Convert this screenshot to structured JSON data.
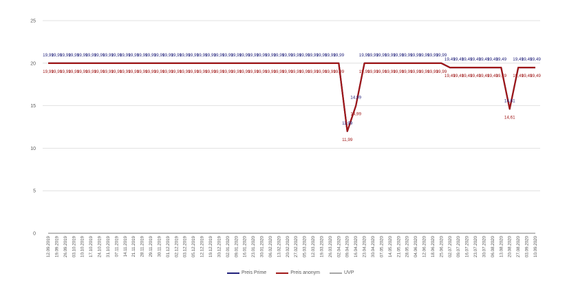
{
  "chart_data": {
    "type": "line",
    "title": "",
    "xlabel": "",
    "ylabel": "",
    "ylim": [
      0,
      25
    ],
    "yticks": [
      0,
      5,
      10,
      15,
      20,
      25
    ],
    "grid": true,
    "legend_position": "bottom",
    "categories": [
      "12.09.2019",
      "19.09.2019",
      "26.09.2019",
      "03.10.2019",
      "10.10.2019",
      "17.10.2019",
      "24.10.2019",
      "31.10.2019",
      "07.11.2019",
      "14.11.2019",
      "21.11.2019",
      "28.11.2019",
      "29.11.2019",
      "30.11.2019",
      "01.12.2019",
      "02.12.2019",
      "03.12.2019",
      "05.12.2019",
      "12.12.2019",
      "19.12.2019",
      "30.12.2019",
      "02.01.2020",
      "09.01.2020",
      "16.01.2020",
      "23.01.2020",
      "30.01.2020",
      "06.02.2020",
      "13.02.2020",
      "20.02.2020",
      "27.02.2020",
      "05.03.2020",
      "12.03.2020",
      "19.03.2020",
      "26.03.2020",
      "02.04.2020",
      "09.04.2020",
      "16.04.2020",
      "23.04.2020",
      "30.04.2020",
      "07.05.2020",
      "14.05.2020",
      "21.05.2020",
      "28.05.2020",
      "04.06.2020",
      "12.06.2020",
      "18.06.2020",
      "25.06.2020",
      "02.07.2020",
      "09.07.2020",
      "16.07.2020",
      "23.07.2020",
      "30.07.2020",
      "06.08.2020",
      "13.08.2020",
      "20.08.2020",
      "27.08.2020",
      "03.09.2020",
      "10.09.2020"
    ],
    "series": [
      {
        "name": "Preis Prime",
        "color": "#1f1f7a",
        "values": [
          19.99,
          19.99,
          19.99,
          19.99,
          19.99,
          19.99,
          19.99,
          19.99,
          19.99,
          19.99,
          19.99,
          19.99,
          19.99,
          19.99,
          19.99,
          19.99,
          19.99,
          19.99,
          19.99,
          19.99,
          19.99,
          19.99,
          19.99,
          19.99,
          19.99,
          19.99,
          19.99,
          19.99,
          19.99,
          19.99,
          19.99,
          19.99,
          19.99,
          19.99,
          19.99,
          11.99,
          14.99,
          19.99,
          19.99,
          19.99,
          19.99,
          19.99,
          19.99,
          19.99,
          19.99,
          19.99,
          19.99,
          19.49,
          19.49,
          19.49,
          19.49,
          19.49,
          19.49,
          19.49,
          14.61,
          19.49,
          19.49,
          19.49
        ]
      },
      {
        "name": "Preis anonym",
        "color": "#a01818",
        "values": [
          19.99,
          19.99,
          19.99,
          19.99,
          19.99,
          19.99,
          19.99,
          19.99,
          19.99,
          19.99,
          19.99,
          19.99,
          19.99,
          19.99,
          19.99,
          19.99,
          19.99,
          19.99,
          19.99,
          19.99,
          19.99,
          19.99,
          19.99,
          19.99,
          19.99,
          19.99,
          19.99,
          19.99,
          19.99,
          19.99,
          19.99,
          19.99,
          19.99,
          19.99,
          19.99,
          11.99,
          14.99,
          19.99,
          19.99,
          19.99,
          19.99,
          19.99,
          19.99,
          19.99,
          19.99,
          19.99,
          19.99,
          19.49,
          19.49,
          19.49,
          19.49,
          19.49,
          19.49,
          19.49,
          14.61,
          19.49,
          19.49,
          19.49
        ]
      },
      {
        "name": "UVP",
        "color": "#a6a6a6",
        "values": [
          0,
          0,
          0,
          0,
          0,
          0,
          0,
          0,
          0,
          0,
          0,
          0,
          0,
          0,
          0,
          0,
          0,
          0,
          0,
          0,
          0,
          0,
          0,
          0,
          0,
          0,
          0,
          0,
          0,
          0,
          0,
          0,
          0,
          0,
          0,
          0,
          0,
          0,
          0,
          0,
          0,
          0,
          0,
          0,
          0,
          0,
          0,
          0,
          0,
          0,
          0,
          0,
          0,
          0,
          0,
          0,
          0,
          0
        ]
      }
    ]
  },
  "legend": {
    "items": [
      {
        "label": "Preis Prime",
        "color": "#1f1f7a"
      },
      {
        "label": "Preis anonym",
        "color": "#a01818"
      },
      {
        "label": "UVP",
        "color": "#a6a6a6"
      }
    ]
  }
}
